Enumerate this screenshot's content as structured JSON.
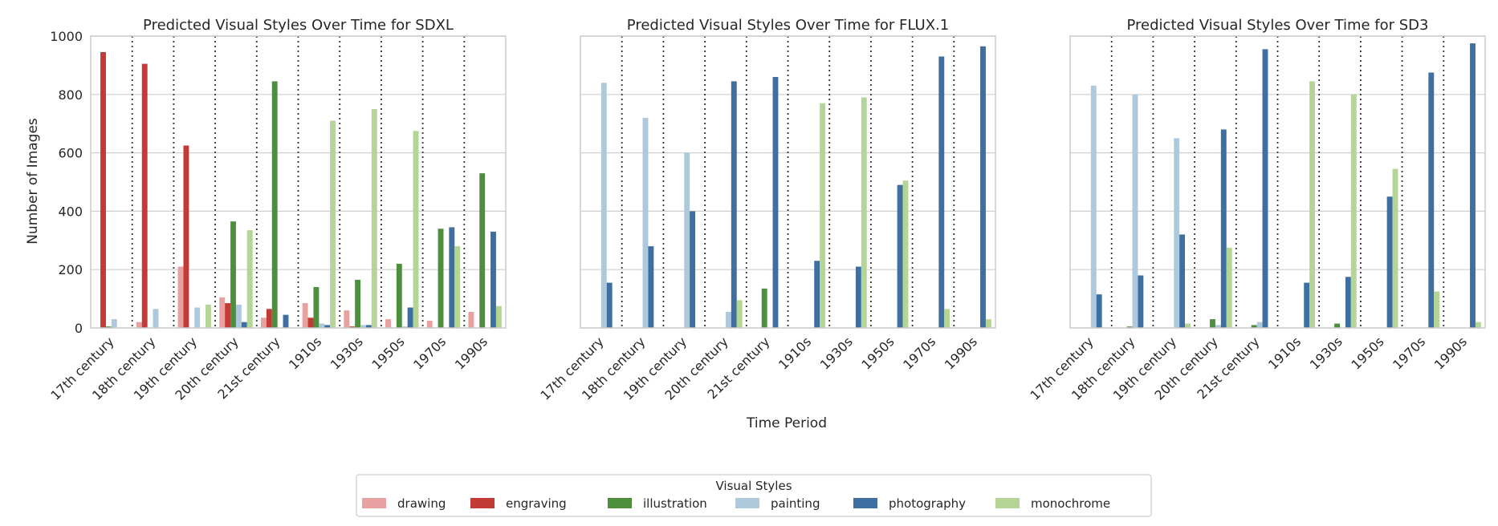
{
  "figure": {
    "xlabel": "Time Period",
    "ylabel": "Number of Images",
    "legend_title": "Visual Styles",
    "legend_placement": "bottom-center",
    "grid": true
  },
  "styles": [
    {
      "name": "drawing",
      "color": "#e8a0a0"
    },
    {
      "name": "engraving",
      "color": "#c23b37"
    },
    {
      "name": "illustration",
      "color": "#4e8f3e"
    },
    {
      "name": "painting",
      "color": "#aec9dc"
    },
    {
      "name": "photography",
      "color": "#3f6fa0"
    },
    {
      "name": "monochrome",
      "color": "#b4d596"
    }
  ],
  "chart_data": [
    {
      "type": "bar",
      "title": "Predicted Visual Styles Over Time for SDXL",
      "categories": [
        "17th century",
        "18th century",
        "19th century",
        "20th century",
        "21st century",
        "1910s",
        "1930s",
        "1950s",
        "1970s",
        "1990s"
      ],
      "ylim": [
        0,
        1000
      ],
      "yticks": [
        0,
        200,
        400,
        600,
        800,
        1000
      ],
      "series": [
        {
          "name": "drawing",
          "values": [
            0,
            20,
            210,
            105,
            35,
            85,
            60,
            30,
            25,
            55
          ]
        },
        {
          "name": "engraving",
          "values": [
            945,
            905,
            625,
            85,
            65,
            35,
            5,
            0,
            0,
            0
          ]
        },
        {
          "name": "illustration",
          "values": [
            5,
            0,
            0,
            365,
            845,
            140,
            165,
            220,
            340,
            530
          ]
        },
        {
          "name": "painting",
          "values": [
            30,
            65,
            70,
            80,
            0,
            15,
            10,
            5,
            0,
            0
          ]
        },
        {
          "name": "photography",
          "values": [
            0,
            0,
            0,
            20,
            45,
            10,
            10,
            70,
            345,
            330
          ]
        },
        {
          "name": "monochrome",
          "values": [
            0,
            0,
            80,
            335,
            0,
            710,
            750,
            675,
            280,
            75
          ]
        }
      ]
    },
    {
      "type": "bar",
      "title": "Predicted Visual Styles Over Time for FLUX.1",
      "categories": [
        "17th century",
        "18th century",
        "19th century",
        "20th century",
        "21st century",
        "1910s",
        "1930s",
        "1950s",
        "1970s",
        "1990s"
      ],
      "ylim": [
        0,
        1000
      ],
      "yticks": [
        0,
        200,
        400,
        600,
        800,
        1000
      ],
      "series": [
        {
          "name": "drawing",
          "values": [
            0,
            0,
            0,
            0,
            0,
            0,
            0,
            0,
            0,
            0
          ]
        },
        {
          "name": "engraving",
          "values": [
            0,
            0,
            0,
            0,
            0,
            0,
            0,
            0,
            0,
            0
          ]
        },
        {
          "name": "illustration",
          "values": [
            0,
            0,
            0,
            0,
            135,
            0,
            0,
            0,
            0,
            0
          ]
        },
        {
          "name": "painting",
          "values": [
            840,
            720,
            600,
            55,
            0,
            0,
            0,
            0,
            0,
            0
          ]
        },
        {
          "name": "photography",
          "values": [
            155,
            280,
            400,
            845,
            860,
            230,
            210,
            490,
            930,
            965
          ]
        },
        {
          "name": "monochrome",
          "values": [
            0,
            0,
            0,
            95,
            0,
            770,
            790,
            505,
            65,
            30
          ]
        }
      ]
    },
    {
      "type": "bar",
      "title": "Predicted Visual Styles Over Time for SD3",
      "categories": [
        "17th century",
        "18th century",
        "19th century",
        "20th century",
        "21st century",
        "1910s",
        "1930s",
        "1950s",
        "1970s",
        "1990s"
      ],
      "ylim": [
        0,
        1000
      ],
      "yticks": [
        0,
        200,
        400,
        600,
        800,
        1000
      ],
      "series": [
        {
          "name": "drawing",
          "values": [
            0,
            0,
            0,
            0,
            0,
            0,
            0,
            0,
            0,
            0
          ]
        },
        {
          "name": "engraving",
          "values": [
            0,
            0,
            0,
            0,
            0,
            0,
            0,
            0,
            0,
            0
          ]
        },
        {
          "name": "illustration",
          "values": [
            0,
            5,
            0,
            30,
            10,
            0,
            15,
            0,
            0,
            0
          ]
        },
        {
          "name": "painting",
          "values": [
            830,
            800,
            650,
            10,
            20,
            0,
            0,
            0,
            0,
            0
          ]
        },
        {
          "name": "photography",
          "values": [
            115,
            180,
            320,
            680,
            955,
            155,
            175,
            450,
            875,
            975
          ]
        },
        {
          "name": "monochrome",
          "values": [
            0,
            0,
            15,
            275,
            0,
            845,
            800,
            545,
            125,
            20
          ]
        }
      ]
    }
  ]
}
